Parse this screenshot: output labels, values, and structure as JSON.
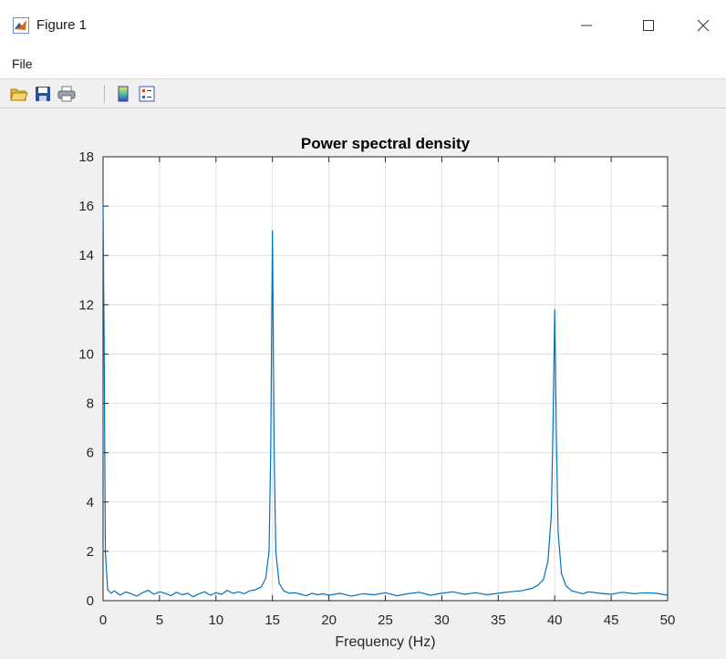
{
  "window": {
    "title": "Figure 1",
    "app_icon": "matlab-icon",
    "controls": [
      "minimize-icon",
      "maximize-icon",
      "close-icon"
    ]
  },
  "menubar": {
    "items": [
      {
        "label": "File"
      }
    ]
  },
  "toolbar": {
    "buttons": [
      "open-file-icon",
      "save-icon",
      "print-icon",
      "insert-colorbar-icon",
      "insert-legend-icon"
    ]
  },
  "colors": {
    "line": "#0072BD",
    "grid": "#e0e0e0",
    "figure_bg": "#f0f0f0"
  },
  "chart_data": {
    "type": "line",
    "title": "Power spectral density",
    "xlabel": "Frequency (Hz)",
    "ylabel": "",
    "xlim": [
      0,
      50
    ],
    "ylim": [
      0,
      18
    ],
    "xticks": [
      0,
      5,
      10,
      15,
      20,
      25,
      30,
      35,
      40,
      45,
      50
    ],
    "yticks": [
      0,
      2,
      4,
      6,
      8,
      10,
      12,
      14,
      16,
      18
    ],
    "grid": true,
    "legend": "none",
    "series": [
      {
        "x": [
          0,
          0.1,
          0.2,
          0.4,
          0.7,
          1,
          1.5,
          2,
          2.5,
          3,
          3.5,
          4,
          4.5,
          5,
          5.5,
          6,
          6.5,
          7,
          7.5,
          8,
          8.5,
          9,
          9.5,
          10,
          10.5,
          11,
          11.5,
          12,
          12.5,
          13,
          13.5,
          14,
          14.4,
          14.7,
          14.85,
          15,
          15.15,
          15.3,
          15.6,
          16,
          16.5,
          17,
          17.5,
          18,
          18.5,
          19,
          19.5,
          20,
          21,
          22,
          23,
          24,
          25,
          26,
          27,
          28,
          29,
          30,
          31,
          32,
          33,
          34,
          35,
          36,
          37,
          38,
          38.5,
          39,
          39.4,
          39.7,
          39.85,
          40,
          40.15,
          40.3,
          40.6,
          41,
          41.5,
          42,
          42.5,
          43,
          44,
          45,
          46,
          47,
          48,
          49,
          50
        ],
        "y": [
          16.2,
          10.5,
          2.0,
          0.45,
          0.3,
          0.4,
          0.22,
          0.35,
          0.28,
          0.18,
          0.32,
          0.42,
          0.26,
          0.36,
          0.3,
          0.2,
          0.34,
          0.24,
          0.3,
          0.16,
          0.28,
          0.36,
          0.22,
          0.32,
          0.26,
          0.42,
          0.3,
          0.36,
          0.28,
          0.4,
          0.44,
          0.55,
          0.9,
          2.0,
          6.0,
          15.0,
          6.0,
          2.0,
          0.7,
          0.4,
          0.3,
          0.32,
          0.26,
          0.2,
          0.3,
          0.24,
          0.28,
          0.22,
          0.3,
          0.18,
          0.28,
          0.24,
          0.32,
          0.2,
          0.28,
          0.34,
          0.22,
          0.3,
          0.36,
          0.26,
          0.32,
          0.24,
          0.3,
          0.36,
          0.4,
          0.5,
          0.62,
          0.85,
          1.6,
          3.5,
          7.0,
          11.8,
          6.5,
          2.8,
          1.1,
          0.6,
          0.4,
          0.34,
          0.28,
          0.36,
          0.3,
          0.26,
          0.34,
          0.28,
          0.32,
          0.3,
          0.22
        ]
      }
    ]
  }
}
